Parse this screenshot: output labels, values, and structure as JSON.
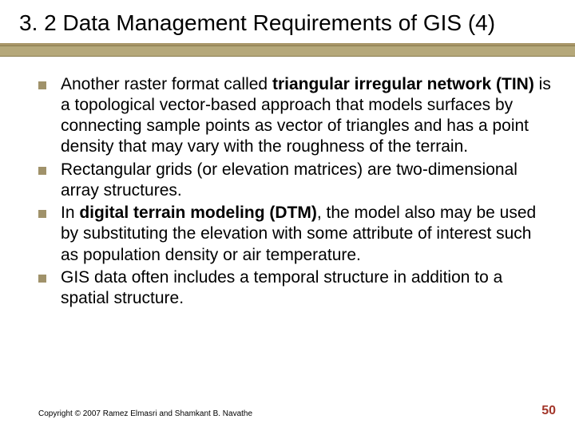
{
  "title": "3. 2 Data Management Requirements of GIS (4)",
  "title_fontsize": 28,
  "title_color": "#000000",
  "divider_color": "#b5a87a",
  "divider_border": "#8a7d50",
  "bullet_color": "#a0926a",
  "bullet_size": 10,
  "body_fontsize": 21,
  "body_color": "#000000",
  "background_color": "#ffffff",
  "bullets": [
    {
      "pre": "Another raster format called ",
      "bold": "triangular irregular network (TIN)",
      "post": " is a topological vector-based approach that models surfaces by connecting sample points as vector of triangles and has a point density that may vary with the roughness of the terrain."
    },
    {
      "pre": "Rectangular grids (or elevation matrices) are two-dimensional array structures.",
      "bold": "",
      "post": ""
    },
    {
      "pre": "In ",
      "bold": "digital terrain modeling (DTM)",
      "post": ", the model also may be used by substituting the elevation  with some attribute of interest such as population density or air temperature."
    },
    {
      "pre": "GIS data often includes a temporal structure in addition to a spatial structure.",
      "bold": "",
      "post": ""
    }
  ],
  "copyright": "Copyright © 2007 Ramez Elmasri and Shamkant B. Navathe",
  "copyright_fontsize": 10,
  "page_number": "50",
  "page_number_color": "#a3362a",
  "page_number_fontsize": 16
}
